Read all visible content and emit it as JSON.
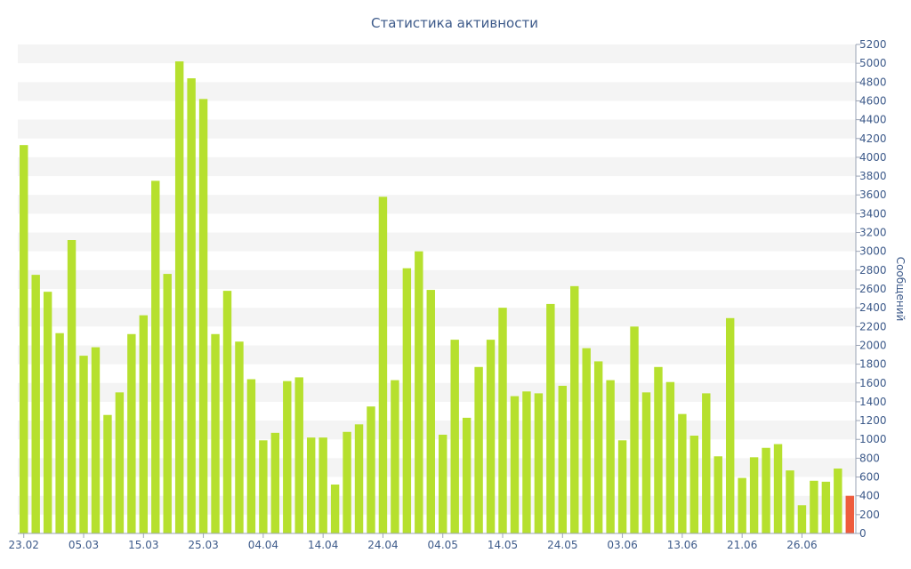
{
  "chart_data": {
    "type": "bar",
    "title": "Статистика активности",
    "xlabel": "",
    "ylabel": "Сообщений",
    "ylim": [
      0,
      5200
    ],
    "y_ticks": [
      0,
      200,
      400,
      600,
      800,
      1000,
      1200,
      1400,
      1600,
      1800,
      2000,
      2200,
      2400,
      2600,
      2800,
      3000,
      3200,
      3400,
      3600,
      3800,
      4000,
      4200,
      4400,
      4600,
      4800,
      5000,
      5200
    ],
    "y_axis_side": "right",
    "x_tick_labels": [
      {
        "label": "23.02",
        "index": 0
      },
      {
        "label": "05.03",
        "index": 5
      },
      {
        "label": "15.03",
        "index": 10
      },
      {
        "label": "25.03",
        "index": 15
      },
      {
        "label": "04.04",
        "index": 20
      },
      {
        "label": "14.04",
        "index": 25
      },
      {
        "label": "24.04",
        "index": 30
      },
      {
        "label": "04.05",
        "index": 35
      },
      {
        "label": "14.05",
        "index": 40
      },
      {
        "label": "24.05",
        "index": 45
      },
      {
        "label": "03.06",
        "index": 50
      },
      {
        "label": "13.06",
        "index": 55
      },
      {
        "label": "21.06",
        "index": 60
      },
      {
        "label": "26.06",
        "index": 65
      }
    ],
    "values": [
      4130,
      2750,
      2570,
      2130,
      3120,
      1890,
      1980,
      1260,
      1500,
      2120,
      2320,
      3750,
      2760,
      5020,
      4840,
      4620,
      2120,
      2580,
      2040,
      1640,
      990,
      1070,
      1620,
      1660,
      1020,
      1020,
      520,
      1080,
      1160,
      1350,
      3580,
      1630,
      2820,
      3000,
      2590,
      1050,
      2060,
      1230,
      1770,
      2060,
      2400,
      1460,
      1510,
      1490,
      2440,
      1570,
      2630,
      1970,
      1830,
      1630,
      990,
      2200,
      1500,
      1770,
      1610,
      1270,
      1040,
      1490,
      820,
      2290,
      590,
      810,
      910,
      950,
      670,
      300,
      560,
      550,
      690,
      400
    ],
    "highlight_last": true,
    "colors": {
      "bar": "#b6e02e",
      "highlight": "#ee5c3d",
      "text": "#3d5a8a",
      "band": "#f4f4f4"
    },
    "grid": "alternating bands",
    "legend": "none"
  }
}
